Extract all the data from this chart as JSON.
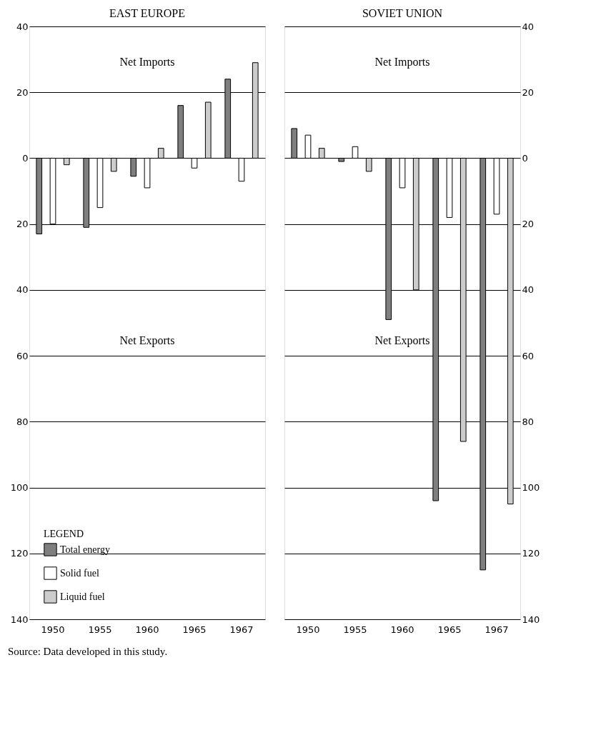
{
  "chart_data": [
    {
      "type": "bar",
      "title": "EAST EUROPE",
      "categories": [
        "1950",
        "1955",
        "1960",
        "1965",
        "1967"
      ],
      "series": [
        {
          "name": "Total energy",
          "color": "#7f7f7f",
          "values": [
            -23,
            -21,
            -5.5,
            16,
            24
          ]
        },
        {
          "name": "Solid fuel",
          "color": "#ffffff",
          "values": [
            -20,
            -15,
            -9,
            -3,
            -7
          ]
        },
        {
          "name": "Liquid fuel",
          "color": "#cccccc",
          "values": [
            -2,
            -4,
            3,
            17,
            29
          ]
        }
      ],
      "ylim": [
        -140,
        40
      ],
      "yticks": [
        {
          "value": -140,
          "label": "140"
        },
        {
          "value": -120,
          "label": "120"
        },
        {
          "value": -100,
          "label": "100"
        },
        {
          "value": -80,
          "label": "80"
        },
        {
          "value": -60,
          "label": "60"
        },
        {
          "value": -40,
          "label": "40"
        },
        {
          "value": -20,
          "label": "20"
        },
        0,
        20,
        40
      ],
      "grid": "y",
      "legend": "bottom left",
      "legend_title": "LEGEND",
      "annotations": [
        "Net Imports",
        "Net Exports",
        "Source: Data developed in this study."
      ]
    },
    {
      "type": "bar",
      "title": "SOVIET UNION",
      "categories": [
        "1950",
        "1955",
        "1960",
        "1965",
        "1967"
      ],
      "series": [
        {
          "color": "#7f7f7f",
          "values": [
            9,
            -1,
            -49,
            -104,
            -125
          ]
        },
        {
          "color": "#ffffff",
          "values": [
            7,
            3.5,
            -9,
            -18,
            -17
          ]
        },
        {
          "color": "#cccccc",
          "values": [
            3,
            -4,
            -40,
            -86,
            -105
          ]
        }
      ],
      "ylim": [
        -140,
        40
      ],
      "yticks": [
        {
          "value": -140,
          "label": "140"
        },
        {
          "value": -120,
          "label": "120"
        },
        {
          "value": -100,
          "label": "100"
        },
        {
          "value": -80,
          "label": "80"
        },
        {
          "value": -60,
          "label": "60"
        },
        {
          "value": -40,
          "label": "40"
        },
        {
          "value": -20,
          "label": "20"
        },
        0,
        20,
        40
      ],
      "grid": "y",
      "legend": false,
      "annotations": [
        "Net Imports",
        "Net Exports"
      ]
    }
  ]
}
